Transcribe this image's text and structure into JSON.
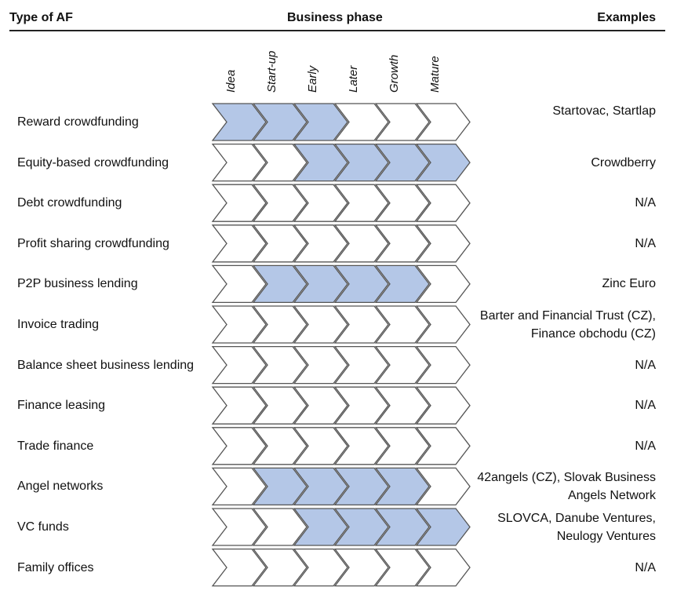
{
  "header": {
    "type": "Type of AF",
    "phase": "Business phase",
    "examples": "Examples"
  },
  "phases": [
    "Idea",
    "Start-up",
    "Early",
    "Later",
    "Growth",
    "Mature"
  ],
  "colors": {
    "active": "#b4c7e7",
    "inactive": "#ffffff",
    "stroke": "#555555"
  },
  "rows": [
    {
      "type": "Reward crowdfunding",
      "examples": "Startovac, Startlap",
      "active": [
        1,
        1,
        1,
        0,
        0,
        0
      ]
    },
    {
      "type": "Equity-based crowdfunding",
      "examples": "Crowdberry",
      "active": [
        0,
        0,
        1,
        1,
        1,
        1
      ]
    },
    {
      "type": "Debt crowdfunding",
      "examples": "N/A",
      "active": [
        0,
        0,
        0,
        0,
        0,
        0
      ]
    },
    {
      "type": "Profit sharing crowdfunding",
      "examples": "N/A",
      "active": [
        0,
        0,
        0,
        0,
        0,
        0
      ]
    },
    {
      "type": "P2P business lending",
      "examples": "Zinc Euro",
      "active": [
        0,
        1,
        1,
        1,
        1,
        0
      ]
    },
    {
      "type": "Invoice trading",
      "examples": "Barter and Financial Trust (CZ), Finance obchodu (CZ)",
      "active": [
        0,
        0,
        0,
        0,
        0,
        0
      ]
    },
    {
      "type": "Balance sheet business lending",
      "examples": "N/A",
      "active": [
        0,
        0,
        0,
        0,
        0,
        0
      ]
    },
    {
      "type": "Finance leasing",
      "examples": "N/A",
      "active": [
        0,
        0,
        0,
        0,
        0,
        0
      ]
    },
    {
      "type": "Trade finance",
      "examples": "N/A",
      "active": [
        0,
        0,
        0,
        0,
        0,
        0
      ]
    },
    {
      "type": "Angel networks",
      "examples": "42angels (CZ), Slovak Business Angels Network",
      "active": [
        0,
        1,
        1,
        1,
        1,
        0
      ]
    },
    {
      "type": "VC funds",
      "examples": "SLOVCA, Danube Ventures, Neulogy Ventures",
      "active": [
        0,
        0,
        1,
        1,
        1,
        1
      ]
    },
    {
      "type": "Family offices",
      "examples": "N/A",
      "active": [
        0,
        0,
        0,
        0,
        0,
        0
      ]
    }
  ]
}
